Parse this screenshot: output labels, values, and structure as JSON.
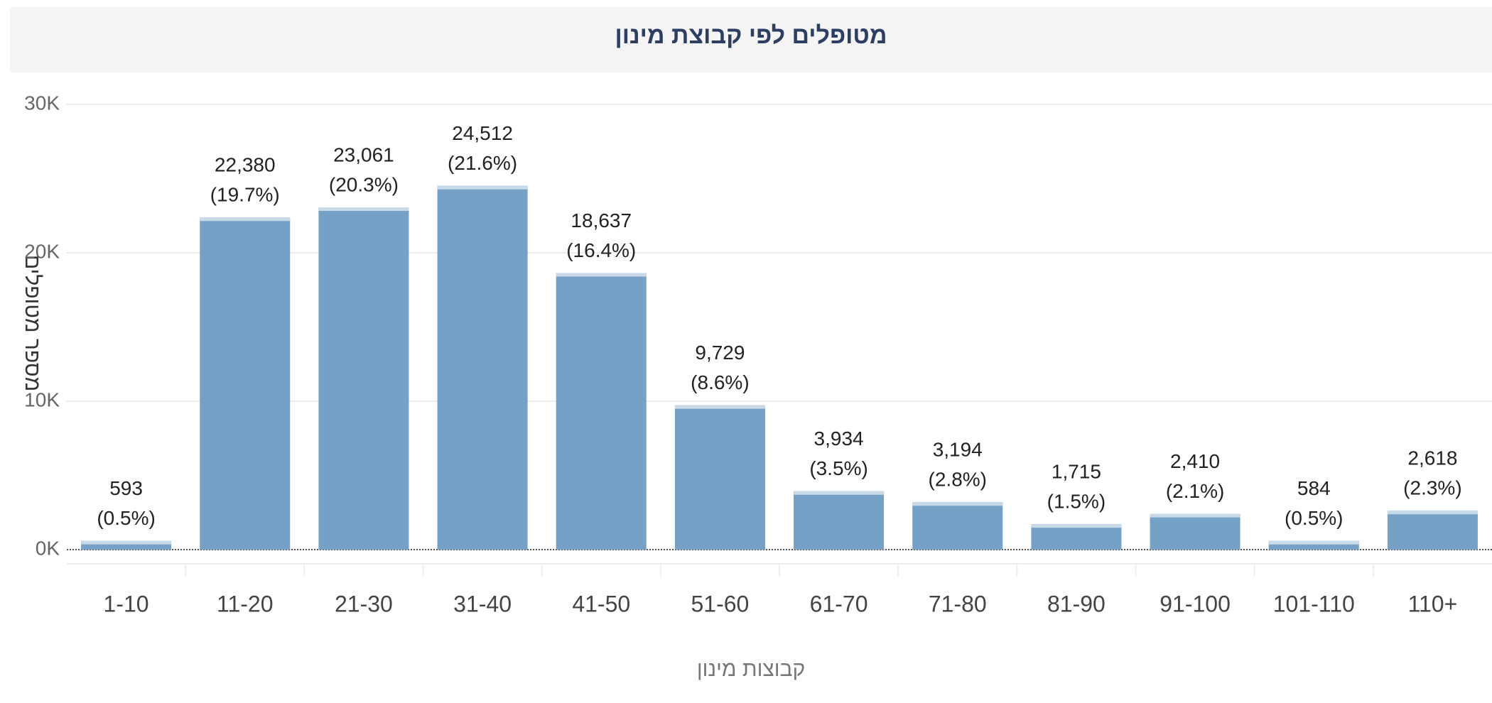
{
  "chart_data": {
    "type": "bar",
    "title": "מטופלים לפי קבוצת מינון",
    "x_label": "קבוצות מינון",
    "y_label": "מספר מטופלים",
    "categories": [
      "1-10",
      "11-20",
      "21-30",
      "31-40",
      "41-50",
      "51-60",
      "61-70",
      "71-80",
      "81-90",
      "91-100",
      "101-110",
      "110+"
    ],
    "values": [
      593,
      22380,
      23061,
      24512,
      18637,
      9729,
      3934,
      3194,
      1715,
      2410,
      584,
      2618
    ],
    "value_labels": [
      "593",
      "22,380",
      "23,061",
      "24,512",
      "18,637",
      "9,729",
      "3,934",
      "3,194",
      "1,715",
      "2,410",
      "584",
      "2,618"
    ],
    "share_labels": [
      "(0.5%)",
      "(19.7%)",
      "(20.3%)",
      "(21.6%)",
      "(16.4%)",
      "(8.6%)",
      "(3.5%)",
      "(2.8%)",
      "(1.5%)",
      "(2.1%)",
      "(0.5%)",
      "(2.3%)"
    ],
    "color": "#76a1c7",
    "ylim": [
      0,
      30000
    ],
    "yticks": [
      {
        "value": 0,
        "label": "0K"
      },
      {
        "value": 10000,
        "label": "10K"
      },
      {
        "value": 20000,
        "label": "20K"
      },
      {
        "value": 30000,
        "label": "30K"
      }
    ],
    "grid": true
  }
}
